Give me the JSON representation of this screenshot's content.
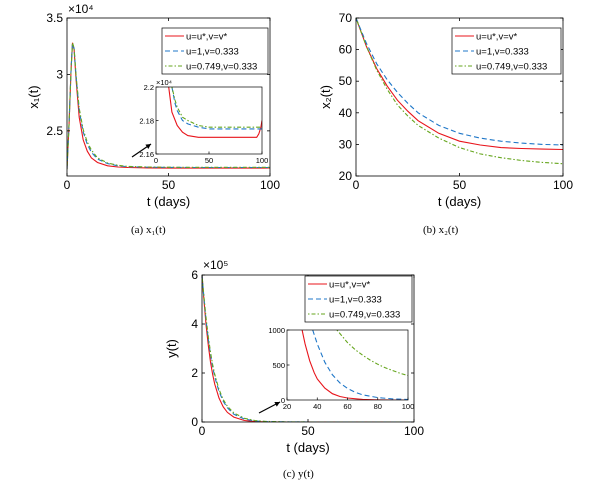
{
  "figure": {
    "captions": [
      "(a) x₁(t)",
      "(b) x₂(t)",
      "(c) y(t)"
    ]
  },
  "colors": {
    "red": "#e8141b",
    "blue": "#1f77c8",
    "green": "#66a61e"
  },
  "chart_data": [
    {
      "id": "a",
      "type": "line",
      "xlabel": "t (days)",
      "ylabel": "x₁(t)",
      "exponent": "×10⁴",
      "xlim": [
        0,
        100
      ],
      "ylim": [
        2.1,
        3.5
      ],
      "xticks": [
        0,
        50,
        100
      ],
      "yticks": [
        2.5,
        3,
        3.5
      ],
      "legend_position": "top-right",
      "series": [
        {
          "name": "u=u*,v=v*",
          "color": "#e8141b",
          "dash": "",
          "x": [
            0,
            1,
            2,
            2.7,
            3.5,
            4.5,
            6,
            8,
            10,
            12,
            15,
            20,
            25,
            30,
            40,
            50,
            60,
            70,
            80,
            90,
            97,
            100
          ],
          "y": [
            2.16,
            2.55,
            3.05,
            3.28,
            3.22,
            2.95,
            2.62,
            2.42,
            2.32,
            2.26,
            2.22,
            2.19,
            2.18,
            2.175,
            2.172,
            2.17,
            2.17,
            2.17,
            2.17,
            2.17,
            2.17,
            2.172
          ]
        },
        {
          "name": "u=1,v=0.333",
          "color": "#1f77c8",
          "dash": "5,3",
          "x": [
            0,
            1,
            2,
            2.7,
            3.5,
            4.5,
            6,
            8,
            10,
            12,
            15,
            20,
            25,
            30,
            40,
            50,
            60,
            70,
            80,
            90,
            100
          ],
          "y": [
            2.16,
            2.55,
            3.05,
            3.28,
            3.23,
            2.98,
            2.68,
            2.49,
            2.38,
            2.31,
            2.25,
            2.21,
            2.19,
            2.182,
            2.178,
            2.176,
            2.175,
            2.175,
            2.175,
            2.175,
            2.175
          ]
        },
        {
          "name": "u=0.749,v=0.333",
          "color": "#66a61e",
          "dash": "1.5,2,4,2",
          "x": [
            0,
            1,
            2,
            2.7,
            3.5,
            4.5,
            6,
            8,
            10,
            12,
            15,
            20,
            25,
            30,
            40,
            50,
            60,
            70,
            80,
            90,
            100
          ],
          "y": [
            2.16,
            2.55,
            3.05,
            3.28,
            3.23,
            2.99,
            2.7,
            2.51,
            2.4,
            2.33,
            2.26,
            2.215,
            2.195,
            2.185,
            2.18,
            2.178,
            2.177,
            2.177,
            2.177,
            2.177,
            2.177
          ]
        }
      ],
      "inset": {
        "exponent": "×10⁴",
        "xlim": [
          0,
          100
        ],
        "ylim": [
          2.16,
          2.2
        ],
        "xticks": [
          0,
          50,
          100
        ],
        "yticks": [
          2.16,
          2.18,
          2.2
        ],
        "series": [
          {
            "color": "#e8141b",
            "dash": "",
            "x": [
              12,
              15,
              20,
              25,
              30,
              40,
              50,
              60,
              70,
              80,
              90,
              95,
              97,
              99,
              100
            ],
            "y": [
              2.2,
              2.185,
              2.177,
              2.173,
              2.171,
              2.17,
              2.17,
              2.17,
              2.17,
              2.17,
              2.17,
              2.17,
              2.172,
              2.176,
              2.18
            ]
          },
          {
            "color": "#1f77c8",
            "dash": "5,3",
            "x": [
              15,
              18,
              20,
              25,
              30,
              40,
              50,
              60,
              70,
              80,
              90,
              100
            ],
            "y": [
              2.2,
              2.19,
              2.186,
              2.18,
              2.178,
              2.176,
              2.175,
              2.175,
              2.175,
              2.175,
              2.175,
              2.175
            ]
          },
          {
            "color": "#66a61e",
            "dash": "1.5,2,4,2",
            "x": [
              15,
              18,
              20,
              25,
              30,
              40,
              50,
              60,
              70,
              80,
              90,
              100
            ],
            "y": [
              2.2,
              2.192,
              2.188,
              2.182,
              2.18,
              2.177,
              2.176,
              2.176,
              2.176,
              2.176,
              2.176,
              2.176
            ]
          }
        ]
      }
    },
    {
      "id": "b",
      "type": "line",
      "xlabel": "t (days)",
      "ylabel": "x₂(t)",
      "xlim": [
        0,
        100
      ],
      "ylim": [
        20,
        70
      ],
      "xticks": [
        0,
        50,
        100
      ],
      "yticks": [
        20,
        30,
        40,
        50,
        60,
        70
      ],
      "legend_position": "top-right",
      "series": [
        {
          "name": "u=u*,v=v*",
          "color": "#e8141b",
          "dash": "",
          "x": [
            0,
            5,
            10,
            15,
            20,
            25,
            30,
            40,
            50,
            60,
            70,
            80,
            90,
            100
          ],
          "y": [
            70,
            61,
            54,
            48.5,
            44,
            40.5,
            37.5,
            33.5,
            31,
            29.8,
            29.0,
            28.7,
            28.5,
            28.4
          ]
        },
        {
          "name": "u=1,v=0.333",
          "color": "#1f77c8",
          "dash": "5,3",
          "x": [
            0,
            5,
            10,
            15,
            20,
            25,
            30,
            40,
            50,
            60,
            70,
            80,
            90,
            100
          ],
          "y": [
            70,
            62,
            55.5,
            50.5,
            46.5,
            43,
            40,
            36,
            33.5,
            32,
            31,
            30.4,
            30.0,
            29.8
          ]
        },
        {
          "name": "u=0.749,v=0.333",
          "color": "#66a61e",
          "dash": "1.5,2,4,2",
          "x": [
            0,
            5,
            10,
            15,
            20,
            25,
            30,
            40,
            50,
            60,
            70,
            80,
            90,
            100
          ],
          "y": [
            70,
            61,
            53.5,
            47.5,
            42.5,
            39,
            36,
            32,
            29,
            27,
            25.8,
            24.9,
            24.3,
            23.9
          ]
        }
      ]
    },
    {
      "id": "c",
      "type": "line",
      "xlabel": "t (days)",
      "ylabel": "y(t)",
      "exponent": "×10⁵",
      "xlim": [
        0,
        100
      ],
      "ylim": [
        0,
        6
      ],
      "xticks": [
        0,
        50,
        100
      ],
      "yticks": [
        0,
        2,
        4,
        6
      ],
      "legend_position": "top-right",
      "series": [
        {
          "name": "u=u*,v=v*",
          "color": "#e8141b",
          "dash": "",
          "x": [
            0,
            1,
            2,
            3,
            4,
            5,
            6,
            8,
            10,
            12,
            15,
            20,
            25,
            30,
            40,
            50,
            60,
            100
          ],
          "y": [
            6,
            4.9,
            3.9,
            3.1,
            2.45,
            1.95,
            1.55,
            0.98,
            0.62,
            0.39,
            0.2,
            0.06,
            0.015,
            0.004,
            0,
            0,
            0,
            0
          ]
        },
        {
          "name": "u=1,v=0.333",
          "color": "#1f77c8",
          "dash": "5,3",
          "x": [
            0,
            1,
            2,
            3,
            4,
            5,
            6,
            8,
            10,
            12,
            15,
            20,
            25,
            30,
            40,
            50,
            60,
            100
          ],
          "y": [
            6,
            5.0,
            4.1,
            3.35,
            2.75,
            2.25,
            1.85,
            1.25,
            0.85,
            0.58,
            0.32,
            0.12,
            0.045,
            0.017,
            0.003,
            0,
            0,
            0
          ]
        },
        {
          "name": "u=0.749,v=0.333",
          "color": "#66a61e",
          "dash": "1.5,2,4,2",
          "x": [
            0,
            1,
            2,
            3,
            4,
            5,
            6,
            8,
            10,
            12,
            15,
            20,
            25,
            30,
            40,
            50,
            60,
            100
          ],
          "y": [
            6,
            5.05,
            4.2,
            3.45,
            2.85,
            2.35,
            1.95,
            1.33,
            0.92,
            0.64,
            0.37,
            0.15,
            0.06,
            0.025,
            0.005,
            0.001,
            0,
            0
          ]
        }
      ],
      "inset": {
        "xlim": [
          20,
          100
        ],
        "ylim": [
          0,
          1000
        ],
        "xticks": [
          20,
          40,
          60,
          80,
          100
        ],
        "yticks": [
          0,
          500,
          1000
        ],
        "series": [
          {
            "color": "#e8141b",
            "dash": "",
            "x": [
              30,
              32,
              35,
              38,
              40,
              45,
              50,
              55,
              60,
              70,
              80,
              90,
              100
            ],
            "y": [
              1000,
              800,
              560,
              390,
              300,
              170,
              90,
              50,
              28,
              8,
              2,
              0.5,
              0
            ]
          },
          {
            "color": "#1f77c8",
            "dash": "5,3",
            "x": [
              37,
              40,
              45,
              50,
              55,
              60,
              65,
              70,
              80,
              90,
              100
            ],
            "y": [
              1000,
              800,
              540,
              360,
              245,
              165,
              110,
              75,
              34,
              15,
              7
            ]
          },
          {
            "color": "#66a61e",
            "dash": "1.5,2,4,2",
            "x": [
              53,
              55,
              60,
              65,
              70,
              75,
              80,
              85,
              90,
              95,
              100
            ],
            "y": [
              1000,
              950,
              820,
              720,
              640,
              570,
              510,
              460,
              420,
              380,
              350
            ]
          }
        ]
      }
    }
  ]
}
